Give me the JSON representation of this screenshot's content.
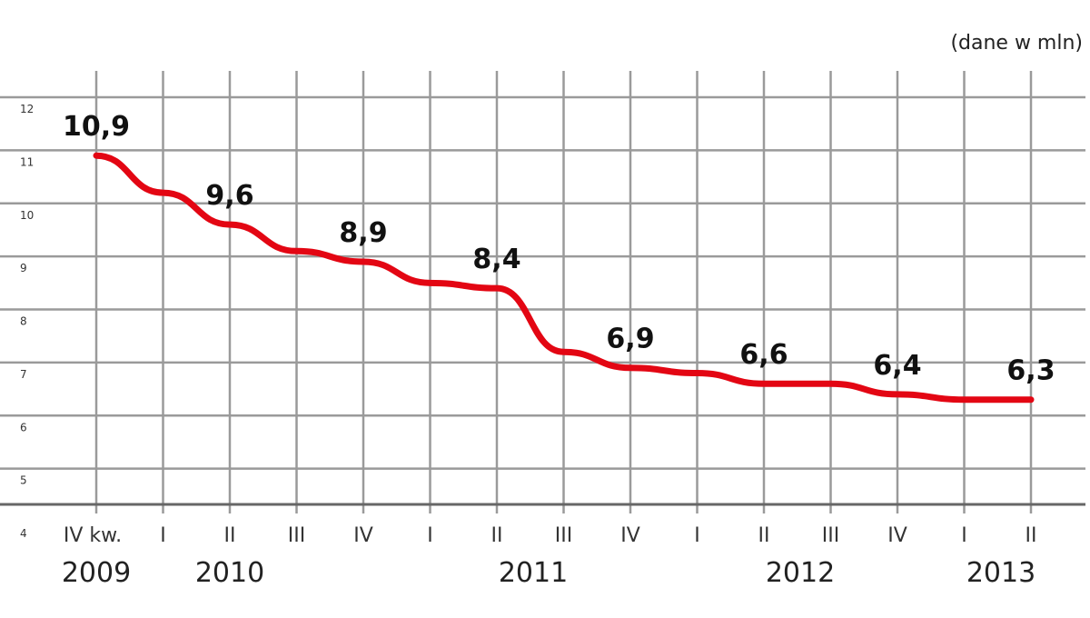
{
  "chart_data": {
    "type": "line",
    "unit_note": "(dane w mln)",
    "categories": [
      "IV kw.",
      "I",
      "II",
      "III",
      "IV",
      "I",
      "II",
      "III",
      "IV",
      "I",
      "II",
      "III",
      "IV",
      "I",
      "II"
    ],
    "year_labels": [
      {
        "label": "2009",
        "from": 0,
        "to": 0
      },
      {
        "label": "2010",
        "from": 1,
        "to": 4
      },
      {
        "label": "2011",
        "from": 5,
        "to": 8
      },
      {
        "label": "2012",
        "from": 9,
        "to": 12
      },
      {
        "label": "2013",
        "from": 13,
        "to": 14
      }
    ],
    "values": [
      10.9,
      10.2,
      9.6,
      9.1,
      8.9,
      8.5,
      8.4,
      7.2,
      6.9,
      6.8,
      6.6,
      6.6,
      6.4,
      6.3,
      6.3
    ],
    "data_labels": [
      {
        "index": 0,
        "text": "10,9"
      },
      {
        "index": 2,
        "text": "9,6"
      },
      {
        "index": 4,
        "text": "8,9"
      },
      {
        "index": 6,
        "text": "8,4"
      },
      {
        "index": 8,
        "text": "6,9"
      },
      {
        "index": 10,
        "text": "6,6"
      },
      {
        "index": 12,
        "text": "6,4"
      },
      {
        "index": 14,
        "text": "6,3"
      }
    ],
    "yticks": [
      4,
      5,
      6,
      7,
      8,
      9,
      10,
      11,
      12
    ],
    "ylim": [
      4,
      12
    ],
    "grid": true,
    "line_color": "#e30613",
    "grid_color": "#9a9a9a"
  }
}
